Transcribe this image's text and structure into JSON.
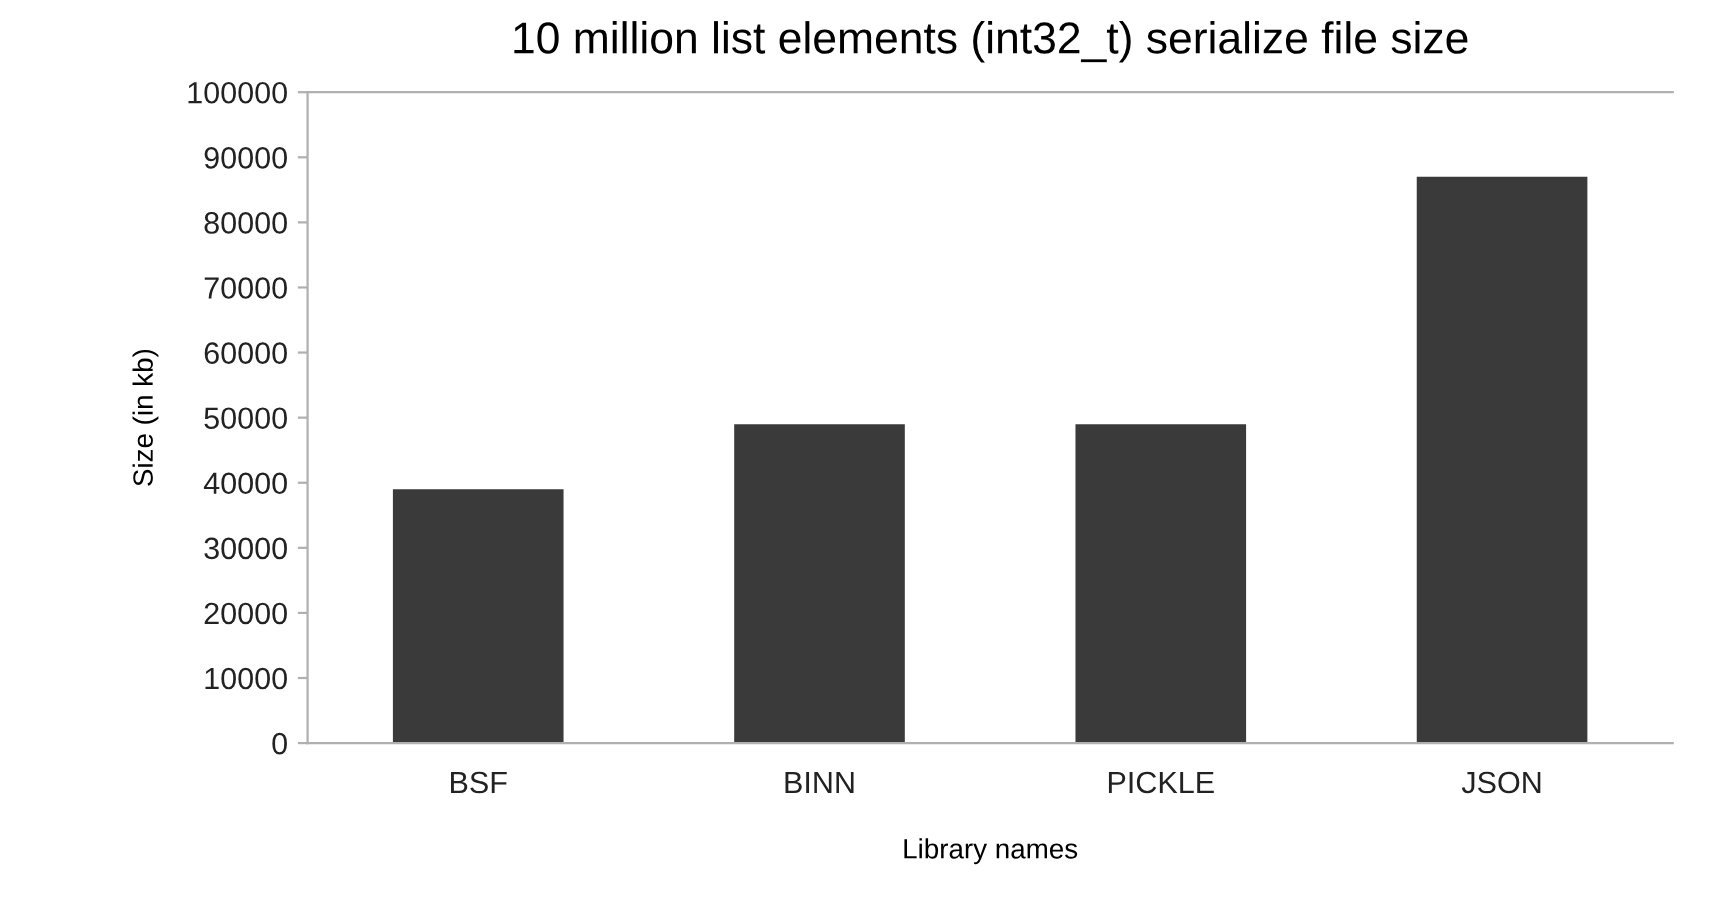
{
  "chart_data": {
    "type": "bar",
    "title": "10 million list elements (int32_t) serialize file size",
    "xlabel": "Library names",
    "ylabel": "Size (in kb)",
    "categories": [
      "BSF",
      "BINN",
      "PICKLE",
      "JSON"
    ],
    "values": [
      39000,
      49000,
      49000,
      87000
    ],
    "color": "#3a3a3a",
    "ylim": [
      0,
      100000
    ],
    "yticks": [
      0,
      10000,
      20000,
      30000,
      40000,
      50000,
      60000,
      70000,
      80000,
      90000,
      100000
    ],
    "grid": false,
    "legend": false
  }
}
